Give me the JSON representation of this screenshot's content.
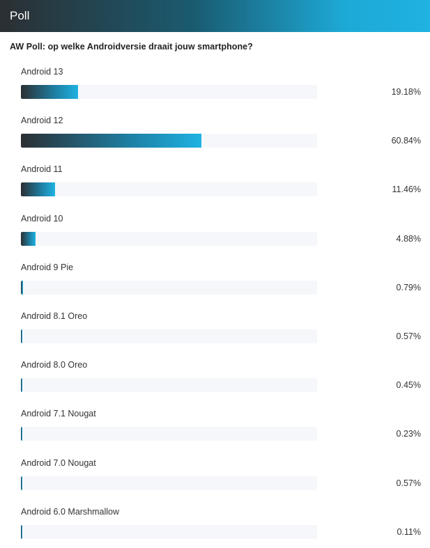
{
  "header": {
    "title": "Poll"
  },
  "poll": {
    "question": "AW Poll: op welke Androidversie draait jouw smartphone?",
    "options": [
      {
        "label": "Android 13",
        "percent_text": "19.18%",
        "percent": 19.18
      },
      {
        "label": "Android 12",
        "percent_text": "60.84%",
        "percent": 60.84
      },
      {
        "label": "Android 11",
        "percent_text": "11.46%",
        "percent": 11.46
      },
      {
        "label": "Android 10",
        "percent_text": "4.88%",
        "percent": 4.88
      },
      {
        "label": "Android 9 Pie",
        "percent_text": "0.79%",
        "percent": 0.79
      },
      {
        "label": "Android 8.1 Oreo",
        "percent_text": "0.57%",
        "percent": 0.57
      },
      {
        "label": "Android 8.0 Oreo",
        "percent_text": "0.45%",
        "percent": 0.45
      },
      {
        "label": "Android 7.1 Nougat",
        "percent_text": "0.23%",
        "percent": 0.23
      },
      {
        "label": "Android 7.0 Nougat",
        "percent_text": "0.57%",
        "percent": 0.57
      },
      {
        "label": "Android 6.0 Marshmallow",
        "percent_text": "0.11%",
        "percent": 0.11
      }
    ]
  },
  "colors": {
    "bar_start": "#2b2f33",
    "bar_end": "#1fb2e2",
    "track": "#f5f7fa"
  }
}
